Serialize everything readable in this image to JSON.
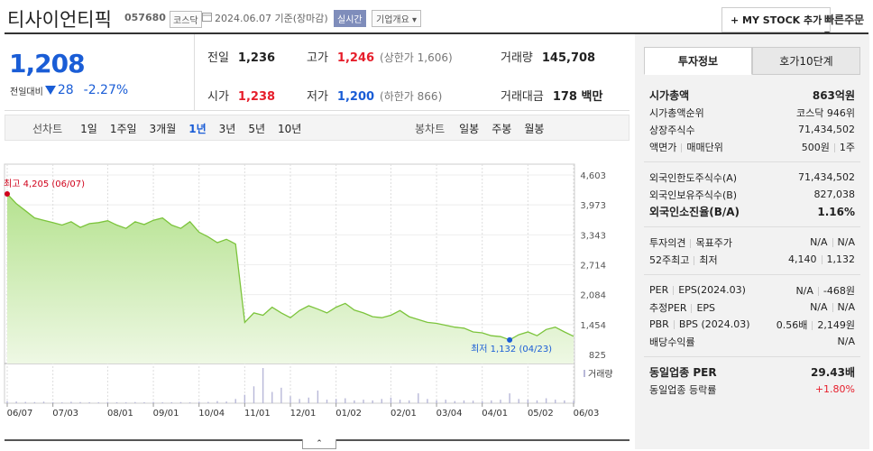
{
  "header": {
    "name": "티사이언티픽",
    "code": "057680",
    "market": "코스닥",
    "date": "2024.06.07",
    "basis": "기준(장마감)",
    "realtime": "실시간",
    "company": "기업개요",
    "mystock": "+ MY STOCK 추가",
    "quick_order": "빠른주문"
  },
  "quote": {
    "price": "1,208",
    "change_label": "전일대비",
    "change": "28",
    "change_pct": "-2.27%"
  },
  "stats": [
    {
      "label": "전일",
      "value": "1,236"
    },
    {
      "label": "고가",
      "value": "1,246",
      "note": "(상한가 1,606)",
      "color": "#e61e2b"
    },
    {
      "label": "거래량",
      "value": "145,708"
    },
    {
      "label": "시가",
      "value": "1,238",
      "color": "#e61e2b"
    },
    {
      "label": "저가",
      "value": "1,200",
      "note": "(하한가 866)",
      "color": "#1a5dd6"
    },
    {
      "label": "거래대금",
      "value": "178 백만"
    }
  ],
  "chart_tabs": {
    "line_label": "선차트",
    "line_periods": [
      "1일",
      "1주일",
      "3개월",
      "1년",
      "3년",
      "5년",
      "10년"
    ],
    "selected": 3,
    "candle_label": "봉차트",
    "candle_periods": [
      "일봉",
      "주봉",
      "월봉"
    ]
  },
  "chart_data": {
    "type": "area",
    "color": "#7cc43c",
    "volume_label": "거래량",
    "volume_color": "#b8b8d8",
    "high_label": "최고 4,205 (06/07)",
    "low_label": "최저 1,132 (04/23)",
    "categories": [
      "06/07",
      null,
      null,
      null,
      null,
      "07/03",
      null,
      null,
      null,
      null,
      null,
      "08/01",
      null,
      null,
      null,
      null,
      "09/01",
      null,
      null,
      null,
      null,
      "10/04",
      null,
      null,
      null,
      null,
      "11/01",
      null,
      null,
      null,
      null,
      "12/01",
      null,
      null,
      null,
      null,
      "01/02",
      null,
      null,
      null,
      null,
      null,
      "02/01",
      null,
      null,
      null,
      null,
      "03/04",
      null,
      null,
      null,
      null,
      "04/01",
      null,
      null,
      null,
      null,
      "05/02",
      null,
      null,
      null,
      null,
      "06/03"
    ],
    "values": [
      4205,
      4000,
      3850,
      3700,
      3650,
      3600,
      3550,
      3620,
      3500,
      3580,
      3600,
      3640,
      3550,
      3480,
      3620,
      3560,
      3650,
      3700,
      3550,
      3480,
      3620,
      3400,
      3300,
      3180,
      3250,
      3150,
      1500,
      1700,
      1650,
      1820,
      1700,
      1600,
      1750,
      1850,
      1780,
      1700,
      1820,
      1900,
      1760,
      1700,
      1620,
      1600,
      1650,
      1750,
      1620,
      1560,
      1500,
      1480,
      1440,
      1400,
      1380,
      1300,
      1280,
      1220,
      1200,
      1132,
      1240,
      1300,
      1220,
      1350,
      1400,
      1300,
      1208
    ],
    "volume": [
      150000,
      120000,
      90000,
      80000,
      110000,
      70000,
      60000,
      100000,
      80000,
      70000,
      60000,
      90000,
      70000,
      60000,
      80000,
      70000,
      90000,
      60000,
      70000,
      80000,
      60000,
      100000,
      90000,
      150000,
      120000,
      300000,
      600000,
      1200000,
      2500000,
      800000,
      1100000,
      500000,
      300000,
      400000,
      900000,
      250000,
      300000,
      350000,
      200000,
      250000,
      200000,
      300000,
      400000,
      250000,
      200000,
      700000,
      300000,
      200000,
      250000,
      150000,
      200000,
      180000,
      150000,
      200000,
      250000,
      700000,
      300000,
      250000,
      200000,
      350000,
      250000,
      200000,
      180000
    ],
    "ylim": [
      825,
      4603
    ],
    "yticks": [
      {
        "value": 825,
        "label": "825"
      },
      {
        "value": 1454,
        "label": "1,454"
      },
      {
        "value": 2084,
        "label": "2,084"
      },
      {
        "value": 2714,
        "label": "2,714"
      },
      {
        "value": 3343,
        "label": "3,343"
      },
      {
        "value": 3973,
        "label": "3,973"
      },
      {
        "value": 4603,
        "label": "4,603"
      }
    ],
    "grid": true
  },
  "info_panel": {
    "tabs": [
      "투자정보",
      "호가10단계"
    ],
    "groups": [
      [
        {
          "labels": [
            "시가총액"
          ],
          "values": [
            "863억원"
          ],
          "bold": true
        },
        {
          "labels": [
            "시가총액순위"
          ],
          "values": [
            "코스닥 946위"
          ]
        },
        {
          "labels": [
            "상장주식수"
          ],
          "values": [
            "71,434,502"
          ]
        },
        {
          "labels": [
            "액면가",
            "매매단위"
          ],
          "values": [
            "500원",
            "1주"
          ]
        }
      ],
      [
        {
          "labels": [
            "외국인한도주식수(A)"
          ],
          "values": [
            "71,434,502"
          ]
        },
        {
          "labels": [
            "외국인보유주식수(B)"
          ],
          "values": [
            "827,038"
          ]
        },
        {
          "labels": [
            "외국인소진율(B/A)"
          ],
          "values": [
            "1.16%"
          ],
          "bold": true
        }
      ],
      [
        {
          "labels": [
            "투자의견",
            "목표주가"
          ],
          "values": [
            "N/A",
            "N/A"
          ]
        },
        {
          "labels": [
            "52주최고",
            "최저"
          ],
          "values": [
            "4,140",
            "1,132"
          ]
        }
      ],
      [
        {
          "labels": [
            "PER",
            "EPS(2024.03)"
          ],
          "values": [
            "N/A",
            "-468원"
          ]
        },
        {
          "labels": [
            "추정PER",
            "EPS"
          ],
          "values": [
            "N/A",
            "N/A"
          ]
        },
        {
          "labels": [
            "PBR",
            "BPS (2024.03)"
          ],
          "values": [
            "0.56배",
            "2,149원"
          ]
        },
        {
          "labels": [
            "배당수익률"
          ],
          "values": [
            "N/A"
          ]
        }
      ],
      [
        {
          "labels": [
            "동일업종 PER"
          ],
          "values": [
            "29.43배"
          ],
          "bold": true
        },
        {
          "labels": [
            "동일업종 등락률"
          ],
          "values": [
            "+1.80%"
          ],
          "color": "#e61e2b"
        }
      ]
    ]
  }
}
